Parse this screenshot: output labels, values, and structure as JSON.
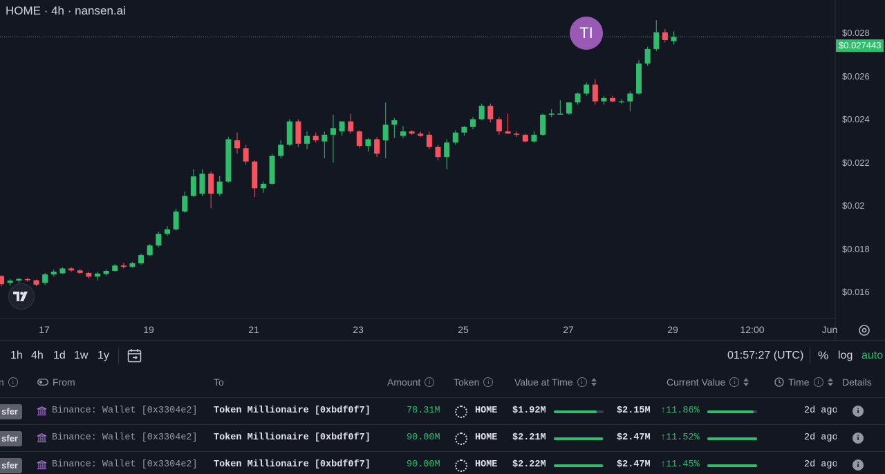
{
  "chart": {
    "title": "HOME · 4h · nansen.ai",
    "avatar_text": "TI",
    "current_price_label": "$0.027443",
    "y_ticks": [
      "$0.028",
      "$0.026",
      "$0.024",
      "$0.022",
      "$0.02",
      "$0.018",
      "$0.016"
    ],
    "x_ticks": [
      "17",
      "19",
      "21",
      "23",
      "25",
      "27",
      "29",
      "12:00",
      "Jun"
    ],
    "up_color": "#2ebd6b",
    "down_color": "#f7525f"
  },
  "chart_data": {
    "type": "candlestick",
    "timeframe": "4h",
    "ylim": [
      0.0148,
      0.0291
    ],
    "current_price": 0.027443,
    "candles": [
      {
        "o": 0.01671,
        "h": 0.01675,
        "l": 0.01625,
        "c": 0.01635
      },
      {
        "o": 0.0164,
        "h": 0.01658,
        "l": 0.01628,
        "c": 0.0165
      },
      {
        "o": 0.0165,
        "h": 0.01663,
        "l": 0.0164,
        "c": 0.01658
      },
      {
        "o": 0.01657,
        "h": 0.01664,
        "l": 0.01645,
        "c": 0.01652
      },
      {
        "o": 0.01652,
        "h": 0.01655,
        "l": 0.01625,
        "c": 0.01632
      },
      {
        "o": 0.0164,
        "h": 0.01685,
        "l": 0.0163,
        "c": 0.01678
      },
      {
        "o": 0.01678,
        "h": 0.017,
        "l": 0.01668,
        "c": 0.0169
      },
      {
        "o": 0.01683,
        "h": 0.0171,
        "l": 0.0168,
        "c": 0.01705
      },
      {
        "o": 0.01705,
        "h": 0.0171,
        "l": 0.0169,
        "c": 0.01696
      },
      {
        "o": 0.01696,
        "h": 0.01702,
        "l": 0.0168,
        "c": 0.01685
      },
      {
        "o": 0.01685,
        "h": 0.0169,
        "l": 0.0166,
        "c": 0.01668
      },
      {
        "o": 0.01668,
        "h": 0.0169,
        "l": 0.0165,
        "c": 0.01682
      },
      {
        "o": 0.0168,
        "h": 0.017,
        "l": 0.01672,
        "c": 0.01694
      },
      {
        "o": 0.01694,
        "h": 0.01725,
        "l": 0.0169,
        "c": 0.01718
      },
      {
        "o": 0.01718,
        "h": 0.0173,
        "l": 0.01705,
        "c": 0.01712
      },
      {
        "o": 0.01712,
        "h": 0.01735,
        "l": 0.01708,
        "c": 0.01728
      },
      {
        "o": 0.01728,
        "h": 0.01772,
        "l": 0.01722,
        "c": 0.01765
      },
      {
        "o": 0.01765,
        "h": 0.01815,
        "l": 0.0176,
        "c": 0.01808
      },
      {
        "o": 0.01808,
        "h": 0.0187,
        "l": 0.018,
        "c": 0.0186
      },
      {
        "o": 0.0186,
        "h": 0.01895,
        "l": 0.01852,
        "c": 0.0188
      },
      {
        "o": 0.0188,
        "h": 0.01972,
        "l": 0.01875,
        "c": 0.0196
      },
      {
        "o": 0.0196,
        "h": 0.0205,
        "l": 0.01955,
        "c": 0.0203
      },
      {
        "o": 0.0203,
        "h": 0.0215,
        "l": 0.02025,
        "c": 0.02118
      },
      {
        "o": 0.0204,
        "h": 0.0215,
        "l": 0.0203,
        "c": 0.0213
      },
      {
        "o": 0.0213,
        "h": 0.0214,
        "l": 0.01975,
        "c": 0.0204
      },
      {
        "o": 0.0204,
        "h": 0.0212,
        "l": 0.0203,
        "c": 0.02095
      },
      {
        "o": 0.02095,
        "h": 0.02295,
        "l": 0.0209,
        "c": 0.02285
      },
      {
        "o": 0.0228,
        "h": 0.02315,
        "l": 0.0222,
        "c": 0.02245
      },
      {
        "o": 0.02245,
        "h": 0.0226,
        "l": 0.0217,
        "c": 0.02185
      },
      {
        "o": 0.02185,
        "h": 0.0219,
        "l": 0.02025,
        "c": 0.02065
      },
      {
        "o": 0.02065,
        "h": 0.02095,
        "l": 0.02045,
        "c": 0.02085
      },
      {
        "o": 0.02085,
        "h": 0.0222,
        "l": 0.0208,
        "c": 0.0221
      },
      {
        "o": 0.0221,
        "h": 0.0228,
        "l": 0.022,
        "c": 0.0226
      },
      {
        "o": 0.0226,
        "h": 0.02375,
        "l": 0.02255,
        "c": 0.02365
      },
      {
        "o": 0.02365,
        "h": 0.02375,
        "l": 0.0225,
        "c": 0.02265
      },
      {
        "o": 0.02265,
        "h": 0.0232,
        "l": 0.0224,
        "c": 0.023
      },
      {
        "o": 0.023,
        "h": 0.02315,
        "l": 0.0227,
        "c": 0.0228
      },
      {
        "o": 0.02275,
        "h": 0.0232,
        "l": 0.022,
        "c": 0.02305
      },
      {
        "o": 0.02305,
        "h": 0.02395,
        "l": 0.0218,
        "c": 0.02335
      },
      {
        "o": 0.0232,
        "h": 0.02365,
        "l": 0.023,
        "c": 0.02365
      },
      {
        "o": 0.02365,
        "h": 0.024,
        "l": 0.0231,
        "c": 0.0232
      },
      {
        "o": 0.0232,
        "h": 0.02325,
        "l": 0.02245,
        "c": 0.02255
      },
      {
        "o": 0.02255,
        "h": 0.0229,
        "l": 0.0223,
        "c": 0.02285
      },
      {
        "o": 0.02285,
        "h": 0.02295,
        "l": 0.02205,
        "c": 0.0222
      },
      {
        "o": 0.0228,
        "h": 0.0245,
        "l": 0.022,
        "c": 0.0235
      },
      {
        "o": 0.0235,
        "h": 0.0238,
        "l": 0.0229,
        "c": 0.0237
      },
      {
        "o": 0.023,
        "h": 0.02345,
        "l": 0.0229,
        "c": 0.0232
      },
      {
        "o": 0.0232,
        "h": 0.02325,
        "l": 0.02305,
        "c": 0.0231
      },
      {
        "o": 0.0231,
        "h": 0.0232,
        "l": 0.02295,
        "c": 0.023
      },
      {
        "o": 0.02305,
        "h": 0.0232,
        "l": 0.0224,
        "c": 0.0225
      },
      {
        "o": 0.0225,
        "h": 0.0226,
        "l": 0.0219,
        "c": 0.02205
      },
      {
        "o": 0.02205,
        "h": 0.02285,
        "l": 0.0215,
        "c": 0.0227
      },
      {
        "o": 0.0227,
        "h": 0.02325,
        "l": 0.0226,
        "c": 0.02315
      },
      {
        "o": 0.02315,
        "h": 0.02345,
        "l": 0.023,
        "c": 0.0234
      },
      {
        "o": 0.0234,
        "h": 0.02385,
        "l": 0.0233,
        "c": 0.02375
      },
      {
        "o": 0.02375,
        "h": 0.02445,
        "l": 0.0237,
        "c": 0.02435
      },
      {
        "o": 0.02435,
        "h": 0.02445,
        "l": 0.0236,
        "c": 0.02375
      },
      {
        "o": 0.02375,
        "h": 0.02385,
        "l": 0.02305,
        "c": 0.0232
      },
      {
        "o": 0.0232,
        "h": 0.024,
        "l": 0.0231,
        "c": 0.0231
      },
      {
        "o": 0.0231,
        "h": 0.0232,
        "l": 0.02295,
        "c": 0.02305
      },
      {
        "o": 0.02305,
        "h": 0.0231,
        "l": 0.0227,
        "c": 0.02275
      },
      {
        "o": 0.02275,
        "h": 0.0232,
        "l": 0.0227,
        "c": 0.02305
      },
      {
        "o": 0.02305,
        "h": 0.024,
        "l": 0.023,
        "c": 0.02395
      },
      {
        "o": 0.02395,
        "h": 0.0242,
        "l": 0.02385,
        "c": 0.024
      },
      {
        "o": 0.024,
        "h": 0.0246,
        "l": 0.02395,
        "c": 0.024
      },
      {
        "o": 0.024,
        "h": 0.0245,
        "l": 0.02395,
        "c": 0.0245
      },
      {
        "o": 0.0245,
        "h": 0.02495,
        "l": 0.0244,
        "c": 0.0249
      },
      {
        "o": 0.0249,
        "h": 0.0254,
        "l": 0.0248,
        "c": 0.0253
      },
      {
        "o": 0.0253,
        "h": 0.02555,
        "l": 0.0244,
        "c": 0.02455
      },
      {
        "o": 0.02455,
        "h": 0.0248,
        "l": 0.0244,
        "c": 0.0247
      },
      {
        "o": 0.0247,
        "h": 0.0248,
        "l": 0.0245,
        "c": 0.02455
      },
      {
        "o": 0.02455,
        "h": 0.02465,
        "l": 0.02445,
        "c": 0.02455
      },
      {
        "o": 0.02455,
        "h": 0.025,
        "l": 0.0241,
        "c": 0.0249
      },
      {
        "o": 0.0249,
        "h": 0.0264,
        "l": 0.02485,
        "c": 0.02625
      },
      {
        "o": 0.02625,
        "h": 0.027,
        "l": 0.02615,
        "c": 0.0269
      },
      {
        "o": 0.0269,
        "h": 0.0282,
        "l": 0.0268,
        "c": 0.02765
      },
      {
        "o": 0.02765,
        "h": 0.0278,
        "l": 0.0272,
        "c": 0.0273
      },
      {
        "o": 0.02725,
        "h": 0.0277,
        "l": 0.0271,
        "c": 0.02744
      }
    ]
  },
  "toolbar": {
    "timeframes": [
      "1h",
      "4h",
      "1d",
      "1w",
      "1y"
    ],
    "clock": "01:57:27 (UTC)",
    "percent": "%",
    "log": "log",
    "auto": "auto"
  },
  "table": {
    "headers": {
      "type": "n",
      "from": "From",
      "to": "To",
      "amount": "Amount",
      "token": "Token",
      "value_at_time": "Value at Time",
      "current_value": "Current Value",
      "time": "Time",
      "details": "Details"
    },
    "rows": [
      {
        "type": "sfer",
        "from": "Binance: Wallet [0x3304e2]",
        "to": "Token Millionaire [0xbdf0f7]",
        "amount": "78.31M",
        "token": "HOME",
        "value_at_time": "$1.92M",
        "value_bar": 0.86,
        "current_value": "$2.15M",
        "change": "↑11.86%",
        "current_bar": 0.93,
        "time": "2d ago"
      },
      {
        "type": "sfer",
        "from": "Binance: Wallet [0x3304e2]",
        "to": "Token Millionaire [0xbdf0f7]",
        "amount": "90.00M",
        "token": "HOME",
        "value_at_time": "$2.21M",
        "value_bar": 0.98,
        "current_value": "$2.47M",
        "change": "↑11.52%",
        "current_bar": 1.0,
        "time": "2d ago"
      },
      {
        "type": "sfer",
        "from": "Binance: Wallet [0x3304e2]",
        "to": "Token Millionaire [0xbdf0f7]",
        "amount": "90.00M",
        "token": "HOME",
        "value_at_time": "$2.22M",
        "value_bar": 0.99,
        "current_value": "$2.47M",
        "change": "↑11.45%",
        "current_bar": 1.0,
        "time": "2d ago"
      }
    ]
  }
}
